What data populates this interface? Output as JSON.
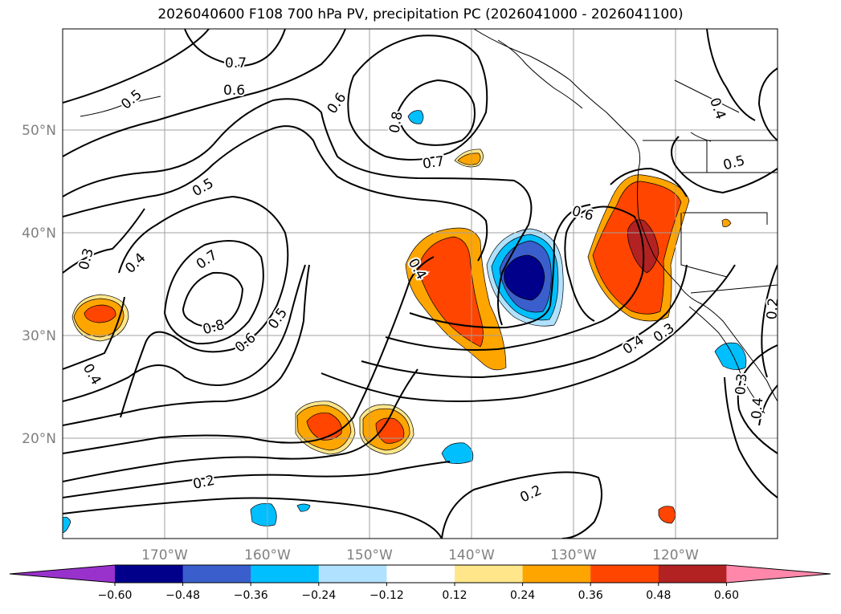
{
  "title": "2026040600 F108 700 hPa PV, precipitation PC (2026041000 - 2026041100)",
  "map": {
    "lat_labels": [
      "50°N",
      "40°N",
      "30°N",
      "20°N"
    ],
    "lon_labels": [
      "170°W",
      "160°W",
      "150°W",
      "140°W",
      "130°W",
      "120°W"
    ],
    "lat_range": [
      10,
      60
    ],
    "lon_range": [
      -180,
      -110
    ]
  },
  "colorbar": {
    "ticks": [
      "−0.60",
      "−0.48",
      "−0.36",
      "−0.24",
      "−0.12",
      "0.12",
      "0.24",
      "0.36",
      "0.48",
      "0.60"
    ],
    "colors": [
      "#9932cc",
      "#00008b",
      "#3a5fcd",
      "#00bfff",
      "#b0e2ff",
      "#ffffff",
      "#ffe68a",
      "#ffa500",
      "#ff4500",
      "#b22222",
      "#ff88aa"
    ]
  },
  "contour_labels": [
    {
      "text": "0.7"
    },
    {
      "text": "0.6"
    },
    {
      "text": "0.5"
    },
    {
      "text": "0.6"
    },
    {
      "text": "0.8"
    },
    {
      "text": "0.7"
    },
    {
      "text": "0.5"
    },
    {
      "text": "0.4"
    },
    {
      "text": "0.3"
    },
    {
      "text": "0.7"
    },
    {
      "text": "0.8"
    },
    {
      "text": "0.6"
    },
    {
      "text": "0.5"
    },
    {
      "text": "0.4"
    },
    {
      "text": "0.4"
    },
    {
      "text": "0.6"
    },
    {
      "text": "0.4"
    },
    {
      "text": "0.3"
    },
    {
      "text": "0.5"
    },
    {
      "text": "0.4"
    },
    {
      "text": "0.2"
    },
    {
      "text": "0.3"
    },
    {
      "text": "0.4"
    },
    {
      "text": "0.2"
    },
    {
      "text": "0.2"
    }
  ]
}
